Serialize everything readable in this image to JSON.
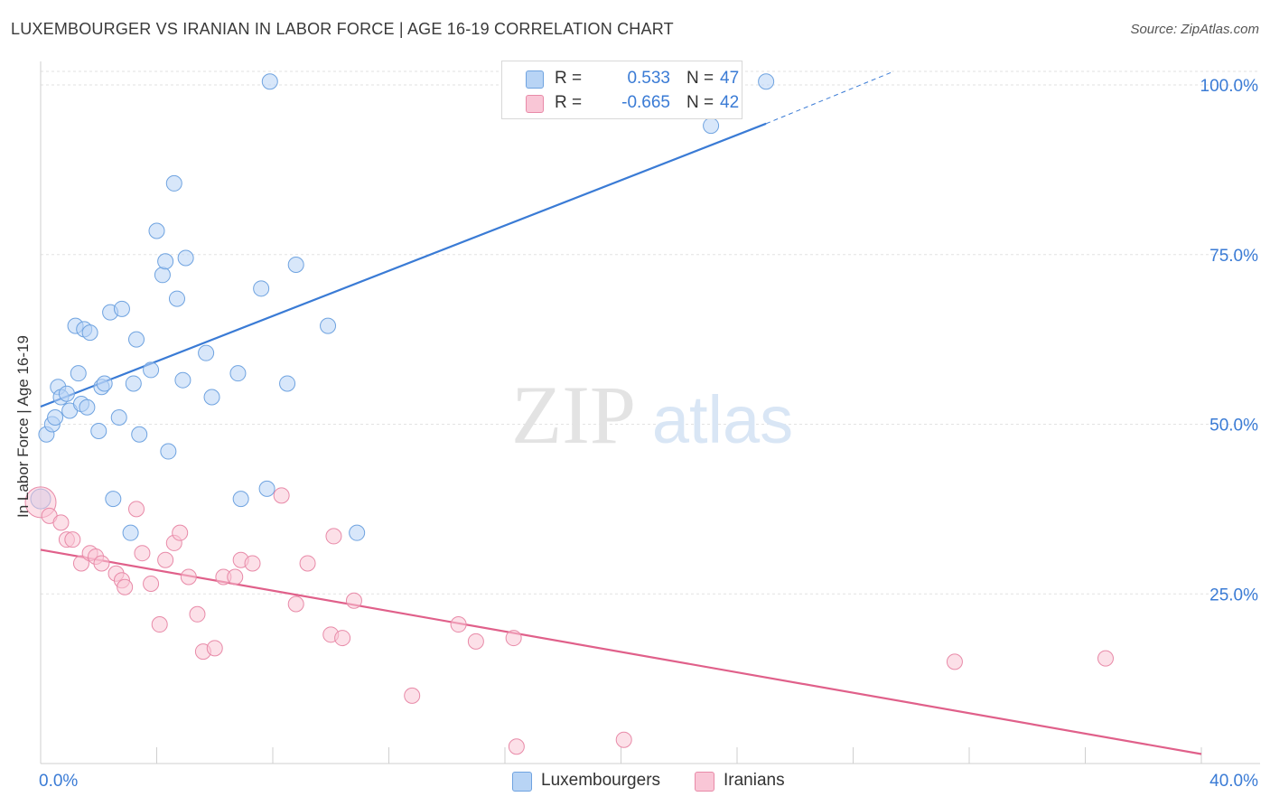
{
  "title": "LUXEMBOURGER VS IRANIAN IN LABOR FORCE | AGE 16-19 CORRELATION CHART",
  "source": "Source: ZipAtlas.com",
  "watermark": {
    "zip": "ZIP",
    "atlas": "atlas"
  },
  "legend": {
    "r_label": "R =",
    "n_label": "N =",
    "rows": [
      {
        "name": "Luxembourgers",
        "r": "0.533",
        "n": "47",
        "fill": "#b8d4f5",
        "stroke": "#6fa3e0"
      },
      {
        "name": "Iranians",
        "r": "-0.665",
        "n": "42",
        "fill": "#f9c6d6",
        "stroke": "#e88aa8"
      }
    ]
  },
  "chart_data": {
    "type": "scatter",
    "title": "LUXEMBOURGER VS IRANIAN IN LABOR FORCE | AGE 16-19 CORRELATION CHART",
    "xlabel": "",
    "ylabel": "In Labor Force | Age 16-19",
    "xlim": [
      0,
      40
    ],
    "ylim": [
      0,
      102
    ],
    "x_tick_labels": [
      "0.0%",
      "40.0%"
    ],
    "y_tick_labels": [
      "25.0%",
      "50.0%",
      "75.0%",
      "100.0%"
    ],
    "y_ticks": [
      25,
      50,
      75,
      100
    ],
    "grid": true,
    "series": [
      {
        "name": "Luxembourgers",
        "color": "#3a7bd5",
        "fill": "#b8d4f5",
        "trend": {
          "x": [
            0,
            25
          ],
          "y": [
            52.6,
            94.3
          ],
          "dashed_to": [
            29.4,
            102
          ]
        },
        "points": [
          [
            0.0,
            39.0
          ],
          [
            0.2,
            48.5
          ],
          [
            0.4,
            50.0
          ],
          [
            0.5,
            51.0
          ],
          [
            0.6,
            55.5
          ],
          [
            0.7,
            54.0
          ],
          [
            0.9,
            54.5
          ],
          [
            1.0,
            52.0
          ],
          [
            1.2,
            64.5
          ],
          [
            1.3,
            57.5
          ],
          [
            1.4,
            53.0
          ],
          [
            1.5,
            64.0
          ],
          [
            1.7,
            63.5
          ],
          [
            1.6,
            52.5
          ],
          [
            2.0,
            49.0
          ],
          [
            2.1,
            55.5
          ],
          [
            2.2,
            56.0
          ],
          [
            2.4,
            66.5
          ],
          [
            2.5,
            39.0
          ],
          [
            2.7,
            51.0
          ],
          [
            2.8,
            67.0
          ],
          [
            3.1,
            34.0
          ],
          [
            3.2,
            56.0
          ],
          [
            3.3,
            62.5
          ],
          [
            3.4,
            48.5
          ],
          [
            3.8,
            58.0
          ],
          [
            4.0,
            78.5
          ],
          [
            4.2,
            72.0
          ],
          [
            4.3,
            74.0
          ],
          [
            4.4,
            46.0
          ],
          [
            4.6,
            85.5
          ],
          [
            4.7,
            68.5
          ],
          [
            4.9,
            56.5
          ],
          [
            5.0,
            74.5
          ],
          [
            5.7,
            60.5
          ],
          [
            5.9,
            54.0
          ],
          [
            6.8,
            57.5
          ],
          [
            6.9,
            39.0
          ],
          [
            7.6,
            70.0
          ],
          [
            7.8,
            40.5
          ],
          [
            7.9,
            100.5
          ],
          [
            8.5,
            56.0
          ],
          [
            8.8,
            73.5
          ],
          [
            9.9,
            64.5
          ],
          [
            10.9,
            34.0
          ],
          [
            23.1,
            94.0
          ],
          [
            25.0,
            100.5
          ]
        ]
      },
      {
        "name": "Iranians",
        "color": "#e0608a",
        "fill": "#f9c6d6",
        "trend": {
          "x": [
            0,
            40
          ],
          "y": [
            31.5,
            1.4
          ]
        },
        "points": [
          [
            0.0,
            38.5
          ],
          [
            0.3,
            36.5
          ],
          [
            0.7,
            35.5
          ],
          [
            0.9,
            33.0
          ],
          [
            1.1,
            33.0
          ],
          [
            1.4,
            29.5
          ],
          [
            1.7,
            31.0
          ],
          [
            1.9,
            30.5
          ],
          [
            2.1,
            29.5
          ],
          [
            2.6,
            28.0
          ],
          [
            2.8,
            27.0
          ],
          [
            2.9,
            26.0
          ],
          [
            3.3,
            37.5
          ],
          [
            3.5,
            31.0
          ],
          [
            3.8,
            26.5
          ],
          [
            4.1,
            20.5
          ],
          [
            4.3,
            30.0
          ],
          [
            4.6,
            32.5
          ],
          [
            4.8,
            34.0
          ],
          [
            5.1,
            27.5
          ],
          [
            5.4,
            22.0
          ],
          [
            5.6,
            16.5
          ],
          [
            6.0,
            17.0
          ],
          [
            6.3,
            27.5
          ],
          [
            6.7,
            27.5
          ],
          [
            6.9,
            30.0
          ],
          [
            7.3,
            29.5
          ],
          [
            8.3,
            39.5
          ],
          [
            8.8,
            23.5
          ],
          [
            9.2,
            29.5
          ],
          [
            10.0,
            19.0
          ],
          [
            10.1,
            33.5
          ],
          [
            10.4,
            18.5
          ],
          [
            10.8,
            24.0
          ],
          [
            12.8,
            10.0
          ],
          [
            14.4,
            20.5
          ],
          [
            15.0,
            18.0
          ],
          [
            16.3,
            18.5
          ],
          [
            16.4,
            2.5
          ],
          [
            20.1,
            3.5
          ],
          [
            31.5,
            15.0
          ],
          [
            36.7,
            15.5
          ]
        ]
      }
    ]
  }
}
